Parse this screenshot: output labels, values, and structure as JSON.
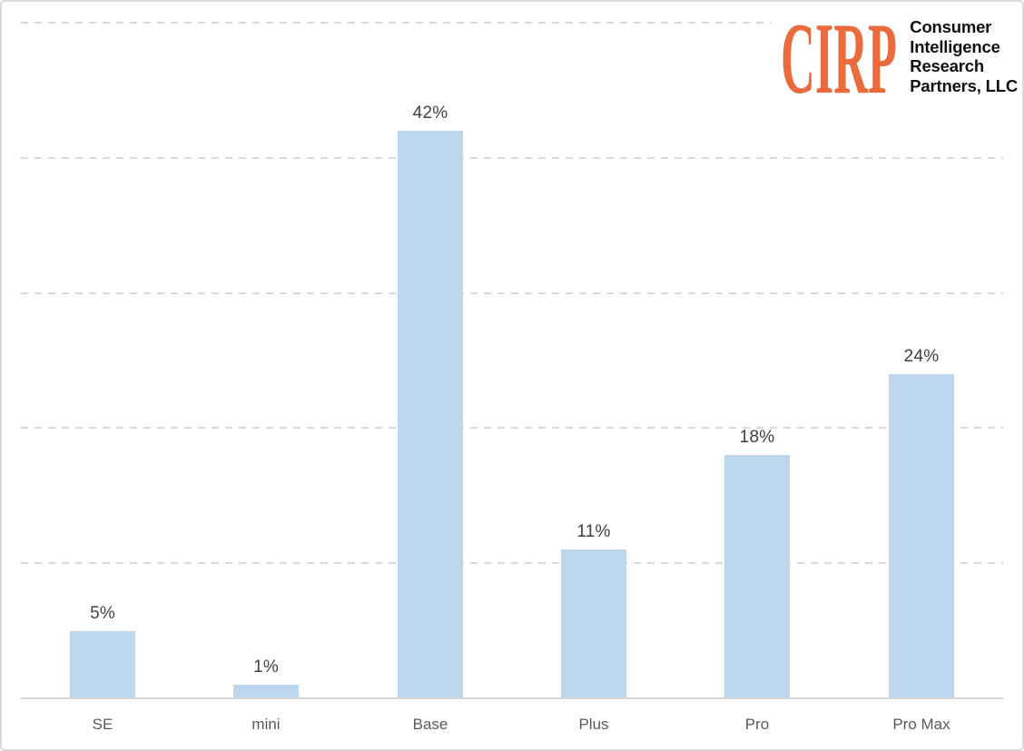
{
  "logo": {
    "brand": "CIRP",
    "lines": [
      "Consumer",
      "Intelligence",
      "Research",
      "Partners, LLC"
    ]
  },
  "colors": {
    "background": "#FFFFFF",
    "border": "#D9D9D9",
    "gridline": "#D9D9D9",
    "axis": "#D6D6D6",
    "bar_fill": "#BDD7EE",
    "data_label": "#404040",
    "category_label": "#595959",
    "logo_orange": "#EC6B3D",
    "logo_black": "#111111"
  },
  "chart_data": {
    "type": "bar",
    "categories": [
      "SE",
      "mini",
      "Base",
      "Plus",
      "Pro",
      "Pro Max"
    ],
    "values": [
      5,
      1,
      42,
      11,
      18,
      24
    ],
    "data_labels": [
      "5%",
      "1%",
      "42%",
      "11%",
      "18%",
      "24%"
    ],
    "title": "",
    "xlabel": "",
    "ylabel": "",
    "ylim": [
      0,
      50
    ],
    "gridline_step": 10,
    "grid": "horizontal-dashed",
    "legend": "none",
    "y_axis_labels_visible": false
  }
}
